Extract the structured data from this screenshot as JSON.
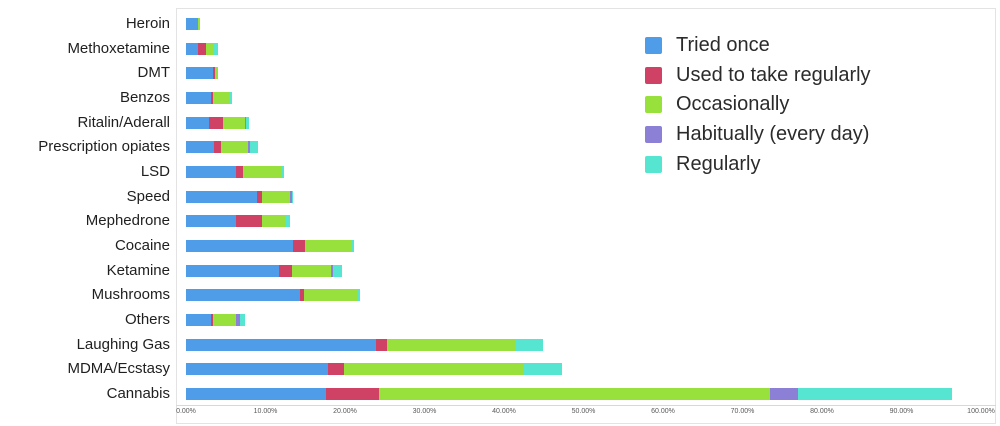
{
  "chart_data": {
    "type": "bar",
    "orientation": "horizontal",
    "stacked": true,
    "title": "",
    "xlabel": "",
    "ylabel": "",
    "xlim": [
      0,
      100
    ],
    "grid": false,
    "legend_position": "top-right",
    "x_ticks": [
      "0.00%",
      "10.00%",
      "20.00%",
      "30.00%",
      "40.00%",
      "50.00%",
      "60.00%",
      "70.00%",
      "80.00%",
      "90.00%",
      "100.00%"
    ],
    "categories": [
      "Heroin",
      "Methoxetamine",
      "DMT",
      "Benzos",
      "Ritalin/Aderall",
      "Prescription opiates",
      "LSD",
      "Speed",
      "Mephedrone",
      "Cocaine",
      "Ketamine",
      "Mushrooms",
      "Others",
      "Laughing Gas",
      "MDMA/Ecstasy",
      "Cannabis"
    ],
    "series": [
      {
        "name": "Tried once",
        "color": "#4f9ce8",
        "values": [
          1.5,
          1.5,
          3.4,
          3.1,
          2.9,
          3.5,
          6.3,
          8.9,
          6.3,
          13.5,
          11.7,
          14.3,
          3.1,
          23.9,
          17.9,
          17.6
        ]
      },
      {
        "name": "Used to take regularly",
        "color": "#cf4265",
        "values": [
          0,
          1.0,
          0.3,
          0.3,
          1.8,
          0.9,
          0.9,
          0.7,
          3.3,
          1.5,
          1.6,
          0.5,
          0.3,
          1.4,
          2.0,
          6.7
        ]
      },
      {
        "name": "Occasionally",
        "color": "#98e13c",
        "values": [
          0.3,
          0.9,
          0.3,
          2.0,
          2.7,
          3.4,
          4.8,
          3.5,
          2.9,
          5.8,
          4.9,
          6.8,
          2.9,
          16.2,
          22.5,
          49.2
        ]
      },
      {
        "name": "Habitually (every day)",
        "color": "#8b80d6",
        "values": [
          0,
          0,
          0,
          0,
          0.2,
          0.3,
          0,
          0.2,
          0,
          0,
          0.3,
          0,
          0.5,
          0,
          0,
          3.5
        ]
      },
      {
        "name": "Regularly",
        "color": "#55e5d0",
        "values": [
          0,
          0.6,
          0,
          0.4,
          0.3,
          0.9,
          0.3,
          0.2,
          0.6,
          0.3,
          1.1,
          0.3,
          0.6,
          3.4,
          4.9,
          19.4
        ]
      }
    ]
  }
}
